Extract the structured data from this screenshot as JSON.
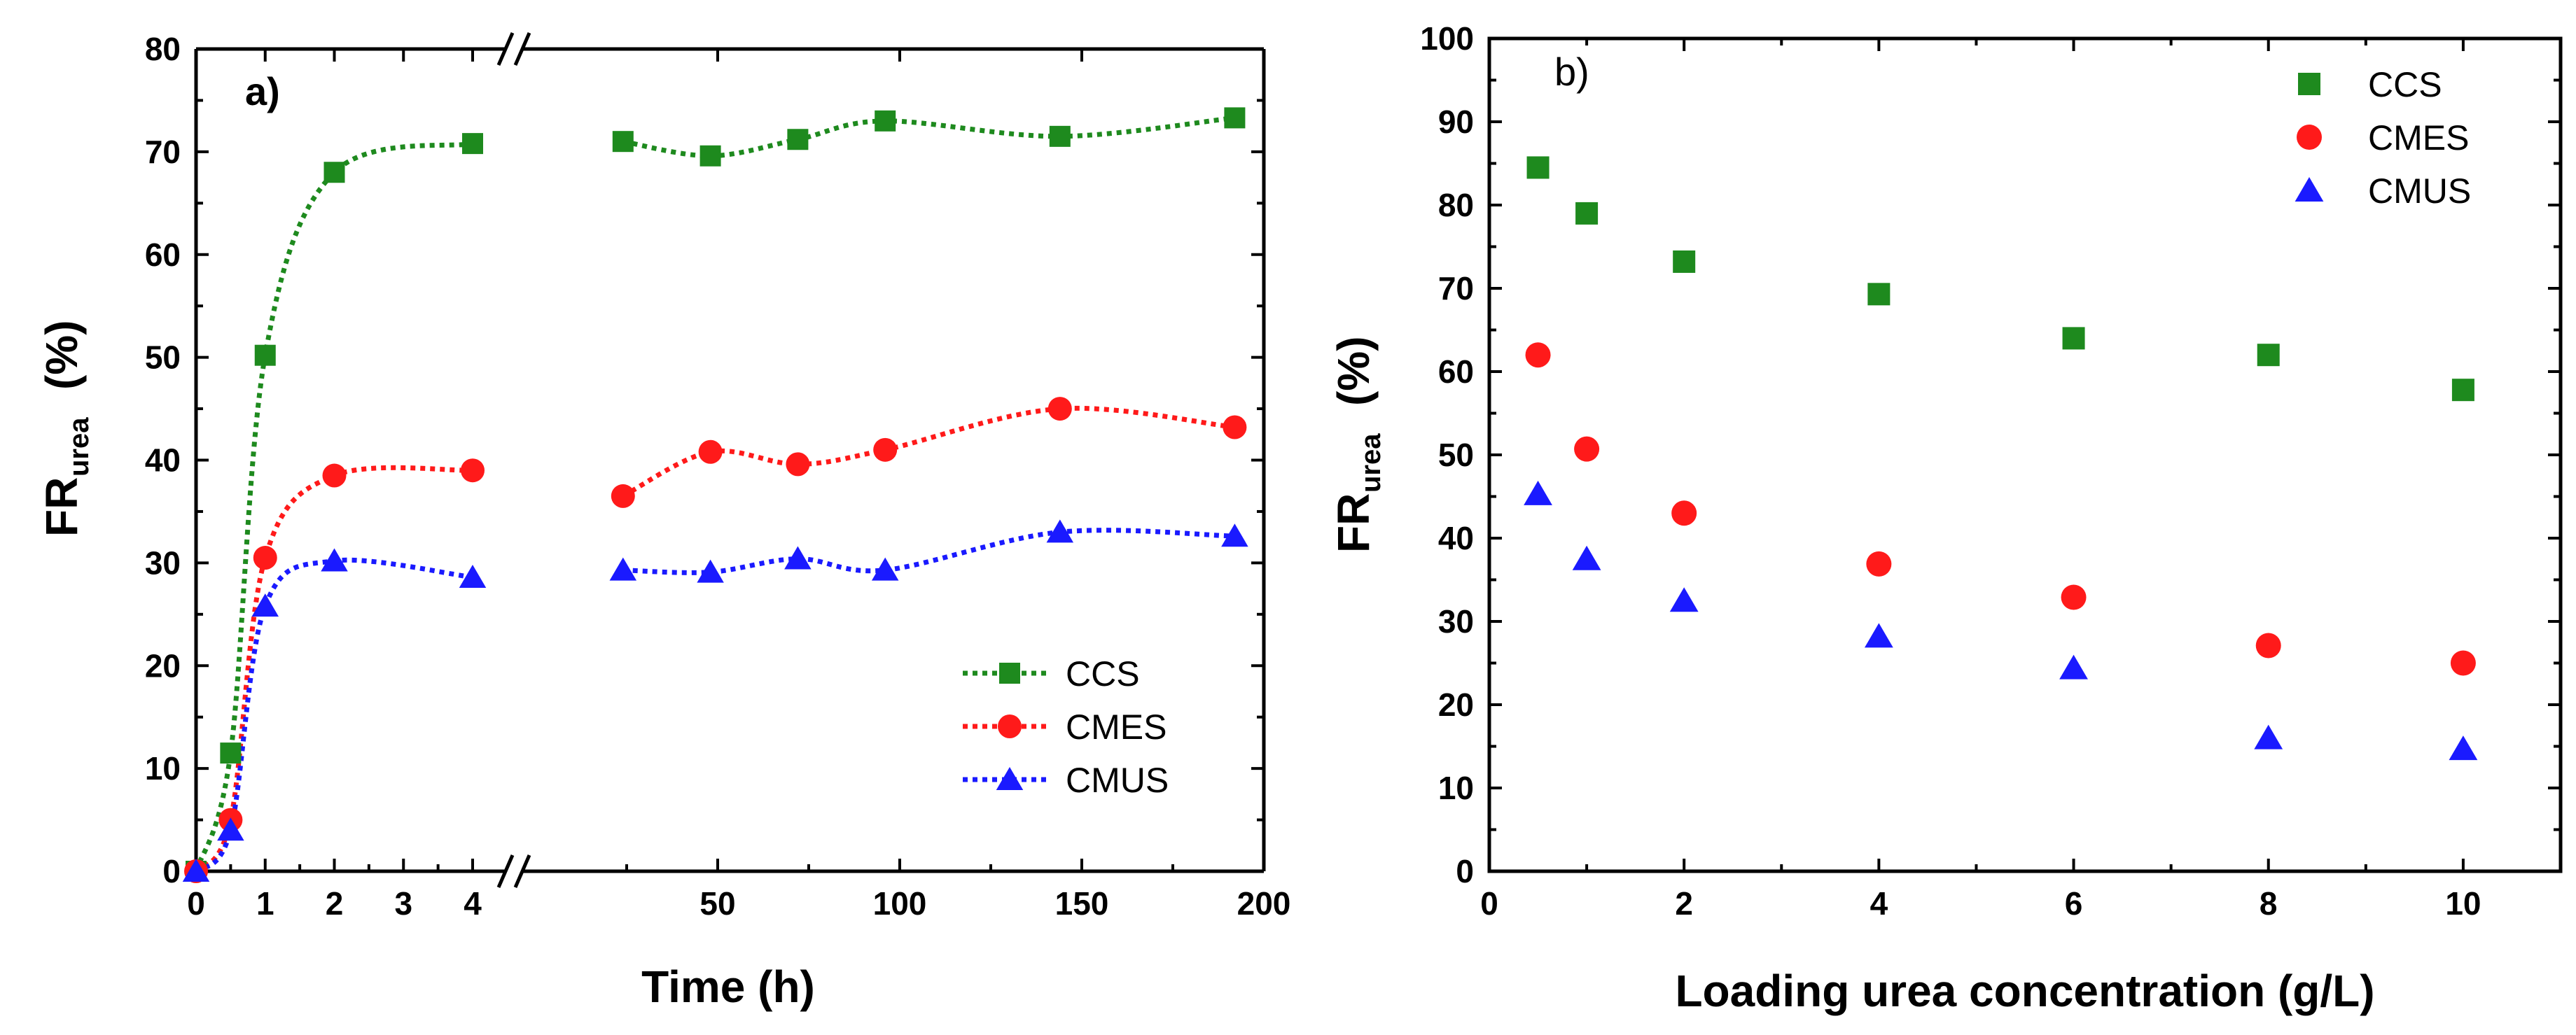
{
  "figure": {
    "colors": {
      "CCS": "#1e8a1e",
      "CMES": "#ff1a1a",
      "CMUS": "#1a1aff"
    }
  },
  "chart_data": [
    {
      "type": "line",
      "panel": "a)",
      "xlabel": "Time (h)",
      "ylabel_main": "FR",
      "ylabel_sub": "urea",
      "ylabel_unit": "(%)",
      "ylim": [
        0,
        80
      ],
      "yticks": [
        "0",
        "10",
        "20",
        "30",
        "40",
        "50",
        "60",
        "70",
        "80"
      ],
      "x_axis_break": true,
      "x_segment1_range": [
        0,
        4
      ],
      "x_segment1_ticks": [
        "0",
        "1",
        "2",
        "3",
        "4"
      ],
      "x_segment2_range": [
        0,
        200
      ],
      "x_segment2_ticks": [
        "50",
        "100",
        "150",
        "200"
      ],
      "legend": [
        "CCS",
        "CMES",
        "CMUS"
      ],
      "series": [
        {
          "name": "CCS",
          "marker": "square",
          "line": "dotted",
          "x": [
            0,
            0.5,
            1,
            2,
            4,
            24,
            48,
            72,
            96,
            144,
            192
          ],
          "y": [
            0,
            11.5,
            50.2,
            68,
            70.8,
            71,
            69.6,
            71.2,
            73,
            71.5,
            73.3
          ]
        },
        {
          "name": "CMES",
          "marker": "circle",
          "line": "dotted",
          "x": [
            0,
            0.5,
            1,
            2,
            4,
            24,
            48,
            72,
            96,
            144,
            192
          ],
          "y": [
            0,
            5,
            30.5,
            38.5,
            39,
            36.5,
            40.8,
            39.6,
            41,
            45,
            43.2
          ]
        },
        {
          "name": "CMUS",
          "marker": "triangle",
          "line": "dotted",
          "x": [
            0,
            0.5,
            1,
            2,
            4,
            24,
            48,
            72,
            96,
            144,
            192
          ],
          "y": [
            0,
            4,
            25.8,
            30.2,
            28.6,
            29.3,
            29.1,
            30.4,
            29.3,
            33,
            32.6
          ]
        }
      ]
    },
    {
      "type": "scatter",
      "panel": "b)",
      "xlabel": "Loading urea concentration (g/L)",
      "ylabel_main": "FR",
      "ylabel_sub": "urea",
      "ylabel_unit": "(%)",
      "xlim": [
        0,
        11
      ],
      "ylim": [
        0,
        100
      ],
      "xticks": [
        "0",
        "2",
        "4",
        "6",
        "8",
        "10"
      ],
      "yticks": [
        "0",
        "10",
        "20",
        "30",
        "40",
        "50",
        "60",
        "70",
        "80",
        "90",
        "100"
      ],
      "legend": [
        "CCS",
        "CMES",
        "CMUS"
      ],
      "series": [
        {
          "name": "CCS",
          "marker": "square",
          "x": [
            0.5,
            1,
            2,
            4,
            6,
            8,
            10
          ],
          "y": [
            84.5,
            79,
            73.2,
            69.3,
            64,
            62,
            57.8
          ]
        },
        {
          "name": "CMES",
          "marker": "circle",
          "x": [
            0.5,
            1,
            2,
            4,
            6,
            8,
            10
          ],
          "y": [
            62,
            50.7,
            43,
            36.9,
            32.9,
            27.1,
            25
          ]
        },
        {
          "name": "CMUS",
          "marker": "triangle",
          "x": [
            0.5,
            1,
            2,
            4,
            6,
            8,
            10
          ],
          "y": [
            45.3,
            37.5,
            32.5,
            28.2,
            24.4,
            16,
            14.7
          ]
        }
      ]
    }
  ]
}
